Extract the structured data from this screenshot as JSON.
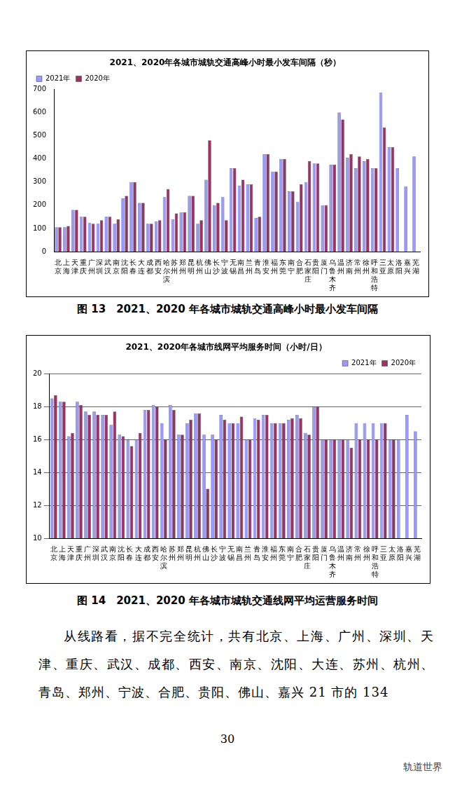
{
  "chart_data": [
    {
      "type": "bar",
      "title": "2021、2020年各城市城轨交通高峰小时最小发车间隔（秒）",
      "categories": [
        "北京",
        "上海",
        "天津",
        "重庆",
        "广州",
        "深圳",
        "武汉",
        "南京",
        "沈阳",
        "长春",
        "大连",
        "成都",
        "西安",
        "哈尔滨",
        "苏州",
        "郑州",
        "昆明",
        "杭州",
        "佛山",
        "长沙",
        "宁波",
        "无锡",
        "南昌",
        "兰州",
        "青岛",
        "淮安",
        "福州",
        "东莞",
        "南宁",
        "合肥",
        "石家庄",
        "贵阳",
        "厦门",
        "乌鲁木齐",
        "温州",
        "济南",
        "常州",
        "徐州",
        "呼和浩特",
        "三亚",
        "太原",
        "洛阳",
        "嘉兴",
        "芜湖"
      ],
      "series": [
        {
          "name": "2021年",
          "color": "#9999ff",
          "values": [
            105,
            105,
            180,
            150,
            125,
            120,
            150,
            120,
            230,
            300,
            210,
            120,
            130,
            235,
            140,
            170,
            240,
            120,
            310,
            200,
            235,
            360,
            285,
            290,
            145,
            420,
            345,
            400,
            260,
            215,
            300,
            380,
            200,
            375,
            600,
            405,
            360,
            390,
            360,
            685,
            450,
            360,
            280,
            410
          ]
        },
        {
          "name": "2020年",
          "color": "#993366",
          "values": [
            105,
            110,
            180,
            150,
            120,
            135,
            150,
            140,
            240,
            300,
            210,
            120,
            135,
            270,
            165,
            170,
            240,
            135,
            480,
            210,
            135,
            360,
            310,
            290,
            150,
            420,
            345,
            400,
            260,
            290,
            390,
            380,
            200,
            375,
            570,
            420,
            410,
            400,
            360,
            535,
            450,
            null,
            null,
            null
          ]
        }
      ],
      "ylim": [
        0,
        700
      ],
      "yticks": [
        0,
        100,
        200,
        300,
        400,
        500,
        600,
        700
      ],
      "grid": false,
      "legend": "upper left"
    },
    {
      "type": "bar",
      "title": "2021、2020年各城市线网平均服务时间（小时/日）",
      "categories": [
        "北京",
        "上海",
        "天津",
        "重庆",
        "广州",
        "深圳",
        "武汉",
        "南京",
        "沈阳",
        "长春",
        "大连",
        "成都",
        "西安",
        "哈尔滨",
        "苏州",
        "郑州",
        "昆明",
        "杭州",
        "佛山",
        "长沙",
        "宁波",
        "无锡",
        "南昌",
        "兰州",
        "青岛",
        "淮安",
        "福州",
        "东莞",
        "南宁",
        "合肥",
        "石家庄",
        "贵阳",
        "厦门",
        "乌鲁木齐",
        "温州",
        "济南",
        "常州",
        "徐州",
        "呼和浩特",
        "三亚",
        "太原",
        "洛阳",
        "嘉兴",
        "芜湖"
      ],
      "series": [
        {
          "name": "2021年",
          "color": "#9999ff",
          "values": [
            18.5,
            18.3,
            16.2,
            18.3,
            17.7,
            17.7,
            17.5,
            16.9,
            16.3,
            16.0,
            16.0,
            17.8,
            18.1,
            17.0,
            18.1,
            16.3,
            17.0,
            17.6,
            16.3,
            16.3,
            17.5,
            17.0,
            17.0,
            16.0,
            17.3,
            17.5,
            17.0,
            17.0,
            17.2,
            17.5,
            16.4,
            18.0,
            16.0,
            16.0,
            16.0,
            16.0,
            17.0,
            17.0,
            17.0,
            17.0,
            16.0,
            16.0,
            17.5,
            16.5
          ]
        },
        {
          "name": "2020年",
          "color": "#993366",
          "values": [
            18.7,
            18.3,
            16.4,
            18.1,
            17.5,
            17.5,
            17.5,
            17.7,
            16.2,
            15.6,
            16.4,
            17.8,
            18.0,
            16.0,
            17.8,
            16.3,
            17.2,
            17.6,
            13.0,
            16.0,
            17.2,
            17.0,
            17.4,
            16.0,
            17.2,
            17.5,
            17.0,
            17.0,
            17.3,
            17.3,
            16.3,
            18.0,
            16.0,
            16.0,
            16.0,
            15.5,
            16.0,
            16.0,
            16.0,
            17.0,
            16.0,
            null,
            null,
            null
          ]
        }
      ],
      "ylim": [
        10,
        20
      ],
      "yticks": [
        10,
        12,
        14,
        16,
        18,
        20
      ],
      "grid": true,
      "legend": "upper right"
    }
  ],
  "captions": [
    "图 13　2021、2020 年各城市城轨交通高峰小时最小发车间隔",
    "图 14　2021、2020 年各城市城轨交通线网平均运营服务时间"
  ],
  "paragraph": "从线路看，据不完全统计，共有北京、上海、广州、深圳、天津、重庆、武汉、成都、西安、南京、沈阳、大连、苏州、杭州、青岛、郑州、宁波、合肥、贵阳、佛山、嘉兴 21 市的 134",
  "page_number": "30",
  "watermark": "轨道世界"
}
